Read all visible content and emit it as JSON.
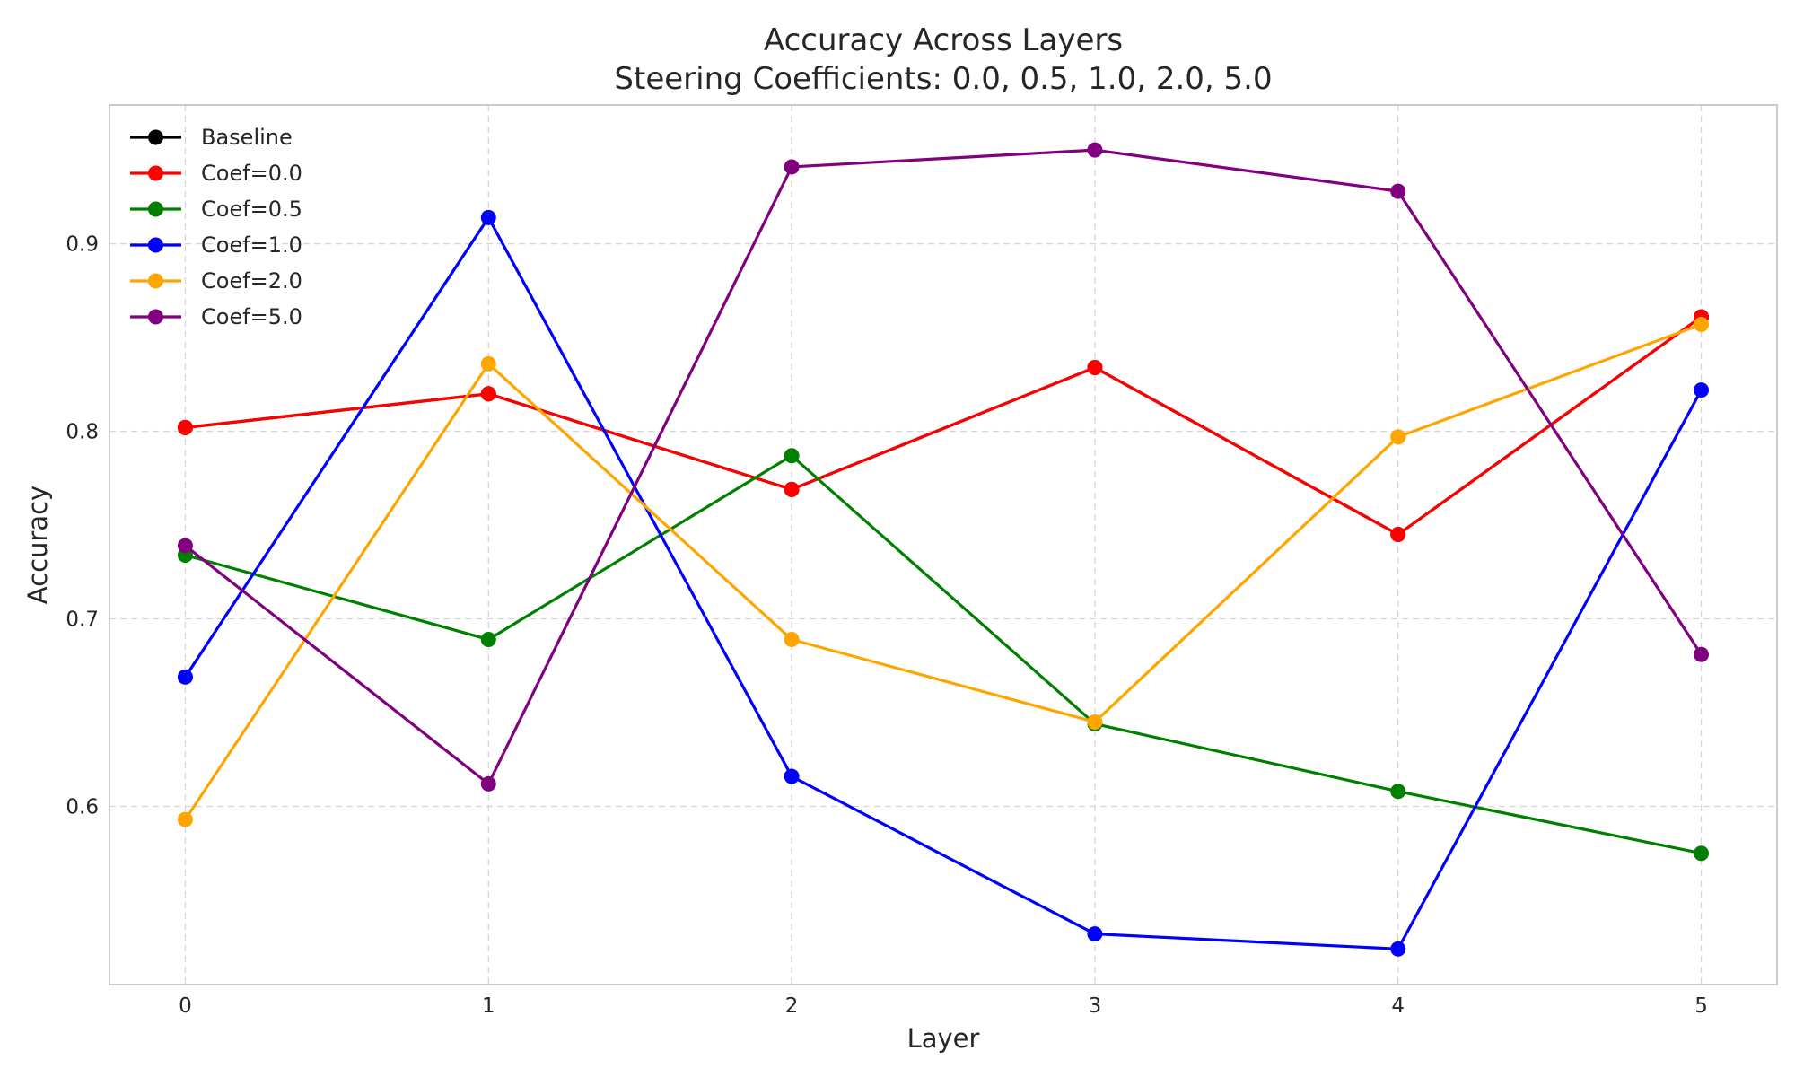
{
  "chart_data": {
    "type": "line",
    "title": "Accuracy Across Layers",
    "subtitle": "Steering Coefficients: 0.0, 0.5, 1.0, 2.0, 5.0",
    "xlabel": "Layer",
    "ylabel": "Accuracy",
    "x": [
      0,
      1,
      2,
      3,
      4,
      5
    ],
    "x_tick_labels": [
      "0",
      "1",
      "2",
      "3",
      "4",
      "5"
    ],
    "y_ticks": [
      0.6,
      0.7,
      0.8,
      0.9
    ],
    "y_tick_labels": [
      "0.6",
      "0.7",
      "0.8",
      "0.9"
    ],
    "xlim": [
      -0.25,
      5.25
    ],
    "ylim": [
      0.505,
      0.974
    ],
    "grid": true,
    "legend_position": "top-left",
    "series": [
      {
        "name": "Baseline",
        "color": "#000000",
        "values": [
          0.802,
          0.82,
          0.769,
          0.834,
          0.745,
          0.861
        ]
      },
      {
        "name": "Coef=0.0",
        "color": "#ff0000",
        "values": [
          0.802,
          0.82,
          0.769,
          0.834,
          0.745,
          0.861
        ]
      },
      {
        "name": "Coef=0.5",
        "color": "#008000",
        "values": [
          0.734,
          0.689,
          0.787,
          0.644,
          0.608,
          0.575
        ]
      },
      {
        "name": "Coef=1.0",
        "color": "#0000ff",
        "values": [
          0.669,
          0.914,
          0.616,
          0.532,
          0.524,
          0.822
        ]
      },
      {
        "name": "Coef=2.0",
        "color": "#ffa500",
        "values": [
          0.593,
          0.836,
          0.689,
          0.645,
          0.797,
          0.857
        ]
      },
      {
        "name": "Coef=5.0",
        "color": "#800080",
        "values": [
          0.739,
          0.612,
          0.941,
          0.95,
          0.928,
          0.681
        ]
      }
    ]
  }
}
